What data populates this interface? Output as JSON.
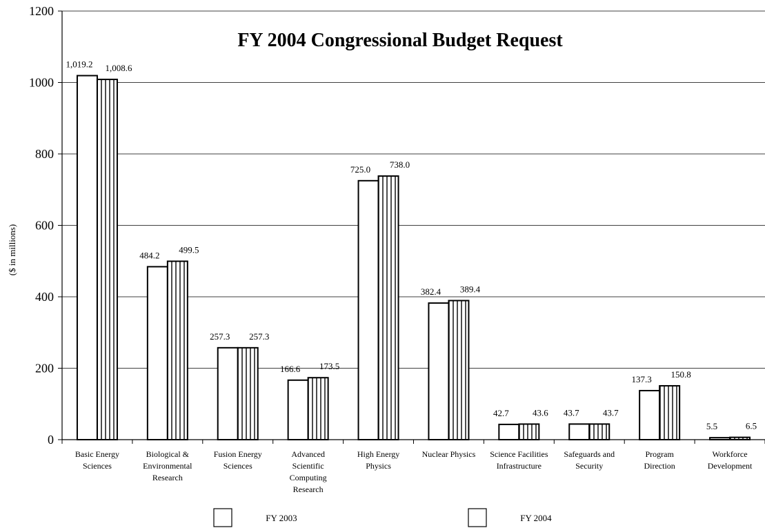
{
  "chart_data": {
    "type": "bar",
    "title": "FY 2004 Congressional Budget Request",
    "xlabel": "",
    "ylabel": "($ in millions)",
    "ylim": [
      0,
      1200
    ],
    "yticks": [
      0,
      200,
      400,
      600,
      800,
      1000,
      1200
    ],
    "grid": true,
    "legend_position": "bottom",
    "categories": [
      [
        "Basic Energy",
        "Sciences"
      ],
      [
        "Biological &",
        "Environmental",
        "Research"
      ],
      [
        "Fusion Energy",
        "Sciences"
      ],
      [
        "Advanced",
        "Scientific",
        "Computing",
        "Research"
      ],
      [
        "High Energy",
        "Physics"
      ],
      [
        "Nuclear Physics"
      ],
      [
        "Science Facilities",
        "Infrastructure"
      ],
      [
        "Safeguards and",
        "Security"
      ],
      [
        "Program",
        "Direction"
      ],
      [
        "Workforce",
        "Development"
      ]
    ],
    "series": [
      {
        "name": "FY 2003",
        "pattern": "plain",
        "values": [
          1019.2,
          484.2,
          257.3,
          166.6,
          725.0,
          382.4,
          42.7,
          43.7,
          137.3,
          5.5
        ],
        "labels": [
          "1,019.2",
          "484.2",
          "257.3",
          "166.6",
          "725.0",
          "382.4",
          "42.7",
          "43.7",
          "137.3",
          "5.5"
        ]
      },
      {
        "name": "FY 2004",
        "pattern": "vertical-stripes",
        "values": [
          1008.6,
          499.5,
          257.3,
          173.5,
          738.0,
          389.4,
          43.6,
          43.7,
          150.8,
          6.5
        ],
        "labels": [
          "1,008.6",
          "499.5",
          "257.3",
          "173.5",
          "738.0",
          "389.4",
          "43.6",
          "43.7",
          "150.8",
          "6.5"
        ]
      }
    ],
    "colors": {
      "bar_stroke": "#000000",
      "bar_fill": "#ffffff",
      "grid": "#000000"
    }
  }
}
